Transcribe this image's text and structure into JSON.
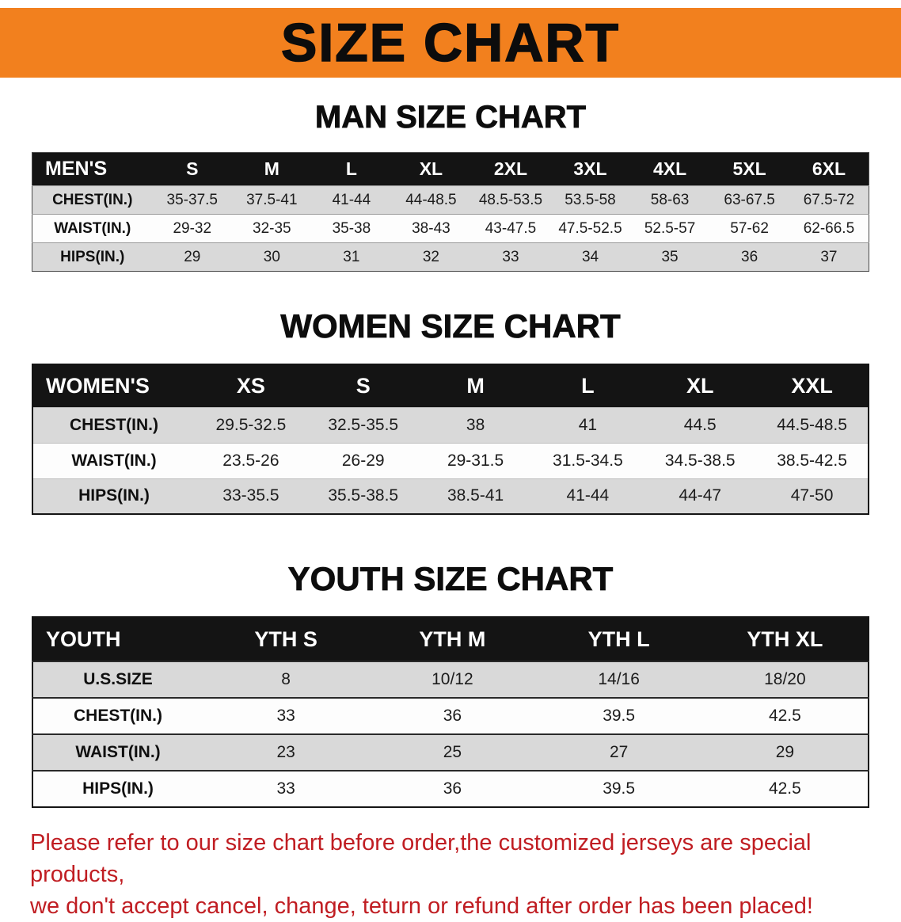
{
  "banner": {
    "title": "SIZE CHART",
    "bg_color": "#f2801e",
    "text_color": "#0c0c0c"
  },
  "colors": {
    "table_header_bg": "#141414",
    "table_header_text": "#ffffff",
    "row_shaded": "#d9d9d9",
    "row_plain": "#fdfdfd",
    "disclaimer_text": "#c01d22"
  },
  "sections": [
    {
      "heading": "MAN SIZE CHART",
      "table": {
        "header": [
          "MEN'S",
          "S",
          "M",
          "L",
          "XL",
          "2XL",
          "3XL",
          "4XL",
          "5XL",
          "6XL"
        ],
        "rows": [
          [
            "CHEST(IN.)",
            "35-37.5",
            "37.5-41",
            "41-44",
            "44-48.5",
            "48.5-53.5",
            "53.5-58",
            "58-63",
            "63-67.5",
            "67.5-72"
          ],
          [
            "WAIST(IN.)",
            "29-32",
            "32-35",
            "35-38",
            "38-43",
            "43-47.5",
            "47.5-52.5",
            "52.5-57",
            "57-62",
            "62-66.5"
          ],
          [
            "HIPS(IN.)",
            "29",
            "30",
            "31",
            "32",
            "33",
            "34",
            "35",
            "36",
            "37"
          ]
        ]
      }
    },
    {
      "heading": "WOMEN SIZE CHART",
      "table": {
        "header": [
          "WOMEN'S",
          "XS",
          "S",
          "M",
          "L",
          "XL",
          "XXL"
        ],
        "rows": [
          [
            "CHEST(IN.)",
            "29.5-32.5",
            "32.5-35.5",
            "38",
            "41",
            "44.5",
            "44.5-48.5"
          ],
          [
            "WAIST(IN.)",
            "23.5-26",
            "26-29",
            "29-31.5",
            "31.5-34.5",
            "34.5-38.5",
            "38.5-42.5"
          ],
          [
            "HIPS(IN.)",
            "33-35.5",
            "35.5-38.5",
            "38.5-41",
            "41-44",
            "44-47",
            "47-50"
          ]
        ]
      }
    },
    {
      "heading": "YOUTH SIZE CHART",
      "table": {
        "header": [
          "YOUTH",
          "YTH S",
          "YTH M",
          "YTH L",
          "YTH XL"
        ],
        "rows": [
          [
            "U.S.SIZE",
            "8",
            "10/12",
            "14/16",
            "18/20"
          ],
          [
            "CHEST(IN.)",
            "33",
            "36",
            "39.5",
            "42.5"
          ],
          [
            "WAIST(IN.)",
            "23",
            "25",
            "27",
            "29"
          ],
          [
            "HIPS(IN.)",
            "33",
            "36",
            "39.5",
            "42.5"
          ]
        ]
      }
    }
  ],
  "disclaimer": {
    "line1": "Please refer to our size chart before order,the customized jerseys are special products,",
    "line2": "we don't accept cancel, change, teturn or refund after order has been placed!"
  }
}
